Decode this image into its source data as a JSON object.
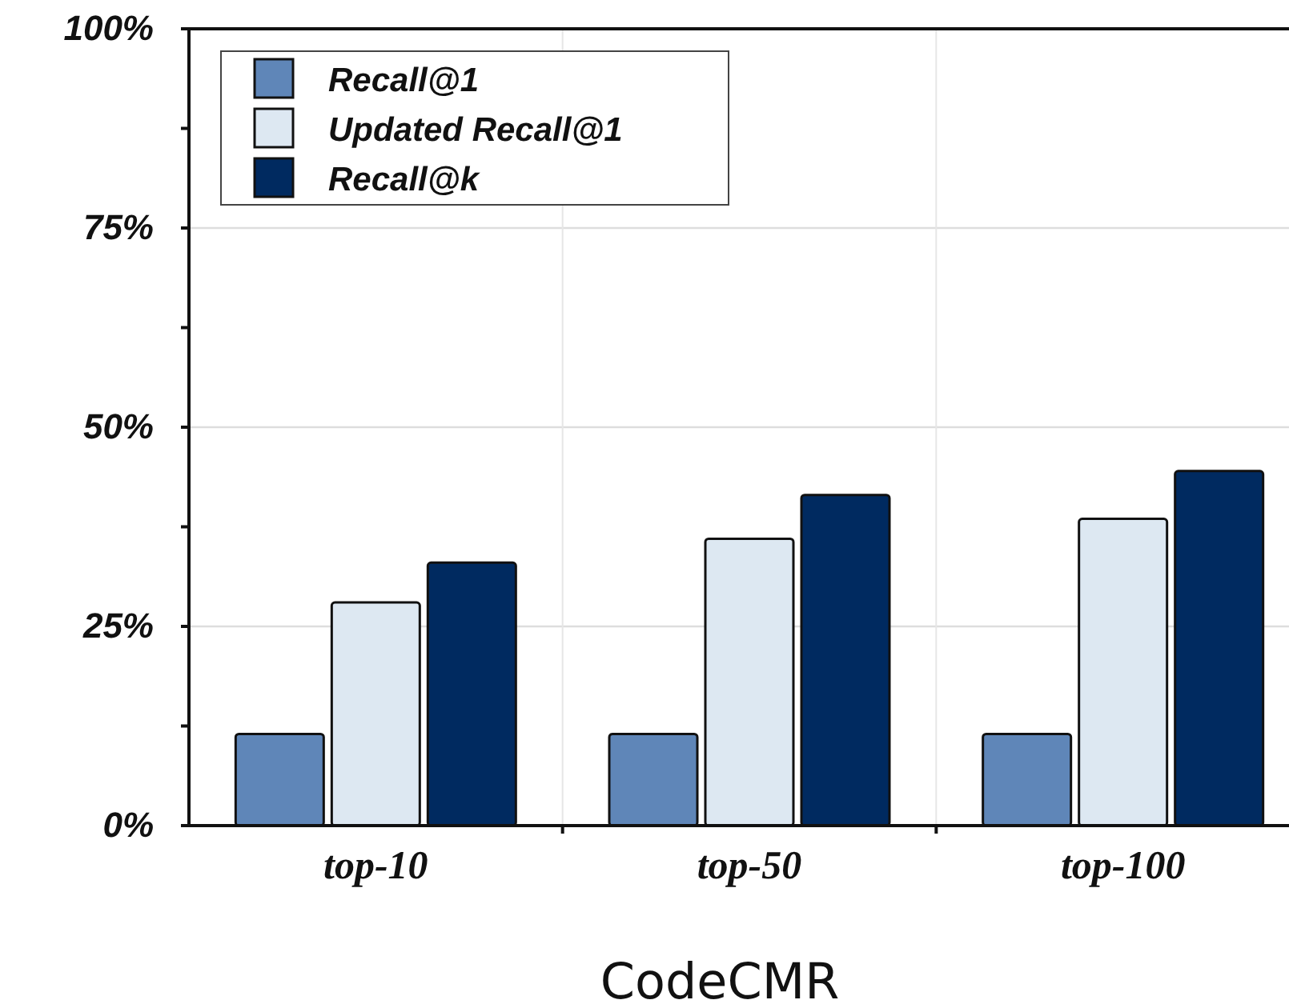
{
  "chart_data": {
    "type": "bar",
    "xlabel": "CodeCMR",
    "categories": [
      "top-10",
      "top-50",
      "top-100"
    ],
    "series": [
      {
        "name": "Recall@1",
        "color": "#5f86b8",
        "values": [
          11.5,
          11.5,
          11.5
        ]
      },
      {
        "name": "Updated Recall@1",
        "color": "#dde8f2",
        "values": [
          28,
          36,
          38.5
        ]
      },
      {
        "name": "Recall@k",
        "color": "#002a60",
        "values": [
          33,
          41.5,
          44.5
        ]
      }
    ],
    "ylim": [
      0,
      100
    ],
    "yticks": [
      {
        "value": 0,
        "label": "0%"
      },
      {
        "value": 12.5,
        "label": null
      },
      {
        "value": 25,
        "label": "25%"
      },
      {
        "value": 37.5,
        "label": null
      },
      {
        "value": 50,
        "label": "50%"
      },
      {
        "value": 62.5,
        "label": null
      },
      {
        "value": 75,
        "label": "75%"
      },
      {
        "value": 87.5,
        "label": null
      },
      {
        "value": 100,
        "label": "100%"
      }
    ],
    "grid": true,
    "legend": "top left"
  }
}
